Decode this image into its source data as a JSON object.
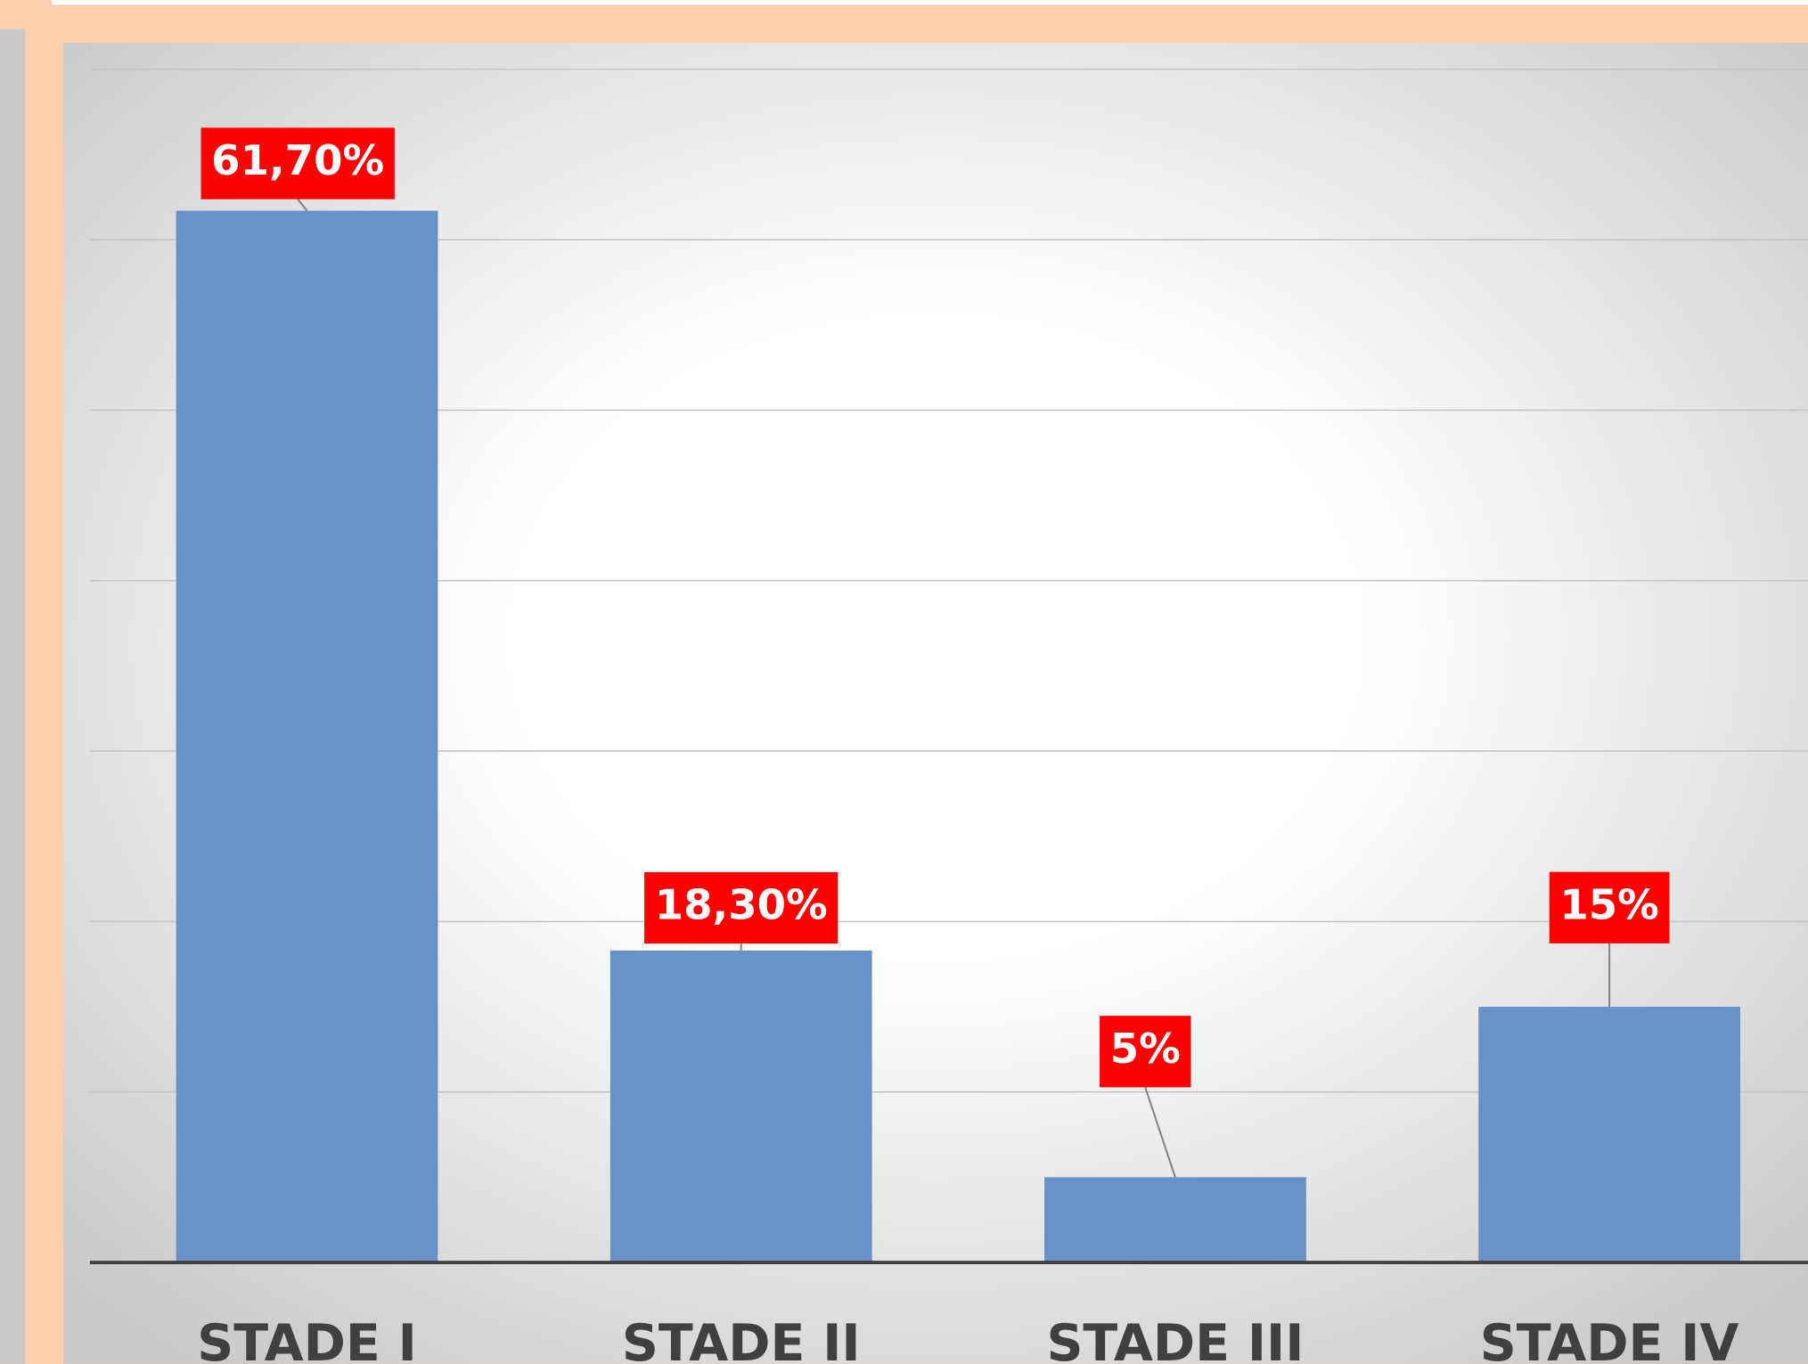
{
  "chart_data": {
    "type": "bar",
    "categories": [
      "STADE I",
      "STADE II",
      "STADE III",
      "STADE IV"
    ],
    "values": [
      61.7,
      18.3,
      5,
      15
    ],
    "value_labels": [
      "61,70%",
      "18,30%",
      "5%",
      "15%"
    ],
    "color": "#6892c6",
    "label_color": "#ff0000",
    "ylim": [
      0,
      70
    ],
    "yticks": [
      0,
      10,
      20,
      30,
      40,
      50,
      60,
      70
    ],
    "grid": true
  }
}
